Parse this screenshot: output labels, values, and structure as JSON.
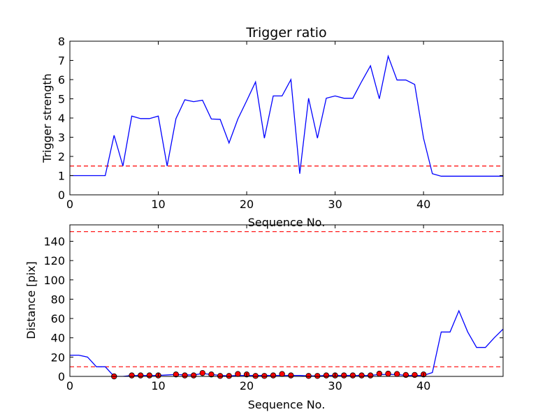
{
  "chart_data": [
    {
      "type": "line",
      "title": "Trigger ratio",
      "xlabel": "Sequence No.",
      "ylabel": "Trigger strength",
      "xlim": [
        0,
        49
      ],
      "ylim": [
        0,
        8
      ],
      "xticks": [
        0,
        10,
        20,
        30,
        40
      ],
      "yticks": [
        0,
        1,
        2,
        3,
        4,
        5,
        6,
        7,
        8
      ],
      "grid": false,
      "legend": "none",
      "series": [
        {
          "style": "line",
          "color": "#0000ff",
          "x": [
            0,
            1,
            2,
            3,
            4,
            5,
            6,
            7,
            8,
            9,
            10,
            11,
            12,
            13,
            14,
            15,
            16,
            17,
            18,
            19,
            20,
            21,
            22,
            23,
            24,
            25,
            26,
            27,
            28,
            29,
            30,
            31,
            32,
            33,
            34,
            35,
            36,
            37,
            38,
            39,
            40,
            41,
            42,
            43,
            44,
            45,
            46,
            47,
            48,
            49
          ],
          "y": [
            1.0,
            1.0,
            1.0,
            1.0,
            1.0,
            3.1,
            1.5,
            4.1,
            3.97,
            3.97,
            4.1,
            1.5,
            3.97,
            4.95,
            4.85,
            4.93,
            3.95,
            3.93,
            2.7,
            3.95,
            4.9,
            5.88,
            2.95,
            5.15,
            5.15,
            6.0,
            1.1,
            5.03,
            2.95,
            5.03,
            5.15,
            5.03,
            5.03,
            5.9,
            6.72,
            5.0,
            7.22,
            5.98,
            5.98,
            5.75,
            2.95,
            1.1,
            0.97,
            0.97,
            0.97,
            0.97,
            0.97,
            0.97,
            0.97,
            0.97
          ]
        }
      ],
      "hlines": [
        {
          "y": 1.5,
          "color": "#ff0000",
          "style": "dashed"
        }
      ]
    },
    {
      "type": "line",
      "title": "",
      "xlabel": "Sequence No.",
      "ylabel": "Distance [pix]",
      "xlim": [
        0,
        49
      ],
      "ylim": [
        0,
        157
      ],
      "xticks": [
        0,
        10,
        20,
        30,
        40
      ],
      "yticks": [
        0,
        20,
        40,
        60,
        80,
        100,
        120,
        140
      ],
      "grid": false,
      "legend": "none",
      "series": [
        {
          "style": "line",
          "color": "#0000ff",
          "x": [
            0,
            1,
            2,
            3,
            4,
            5,
            6,
            7,
            8,
            9,
            10,
            11,
            12,
            13,
            14,
            15,
            16,
            17,
            18,
            19,
            20,
            21,
            22,
            23,
            24,
            25,
            26,
            27,
            28,
            29,
            30,
            31,
            32,
            33,
            34,
            35,
            36,
            37,
            38,
            39,
            40,
            41,
            42,
            43,
            44,
            45,
            46,
            47,
            48,
            49
          ],
          "y": [
            22,
            22,
            20,
            10,
            10,
            0,
            0,
            1,
            1,
            1,
            1,
            1.5,
            2,
            1.5,
            1.5,
            3,
            2,
            1,
            0.5,
            1,
            1,
            1,
            1,
            1,
            1,
            1,
            1,
            0.5,
            0.5,
            1,
            1,
            1,
            1,
            1,
            1,
            2,
            2,
            2,
            1,
            1,
            1,
            4,
            46,
            46,
            68,
            46,
            30,
            30,
            40,
            49
          ]
        },
        {
          "style": "markers",
          "color": "#ff0000",
          "x": [
            5,
            7,
            8,
            9,
            10,
            12,
            13,
            14,
            15,
            16,
            17,
            18,
            19,
            20,
            21,
            22,
            23,
            24,
            25,
            27,
            28,
            29,
            30,
            31,
            32,
            33,
            34,
            35,
            36,
            37,
            38,
            39,
            40
          ],
          "y": [
            0,
            1,
            1,
            1,
            1,
            2,
            1,
            1,
            3.5,
            2,
            0.5,
            0.5,
            2.5,
            2,
            0.5,
            0.5,
            1,
            2.5,
            1,
            0.5,
            0.5,
            1,
            1,
            1,
            1,
            1,
            1,
            2.8,
            2.8,
            2.5,
            1.5,
            1.5,
            2
          ]
        }
      ],
      "hlines": [
        {
          "y": 10,
          "color": "#ff0000",
          "style": "dashed"
        },
        {
          "y": 150,
          "color": "#ff0000",
          "style": "dashed"
        }
      ]
    }
  ]
}
